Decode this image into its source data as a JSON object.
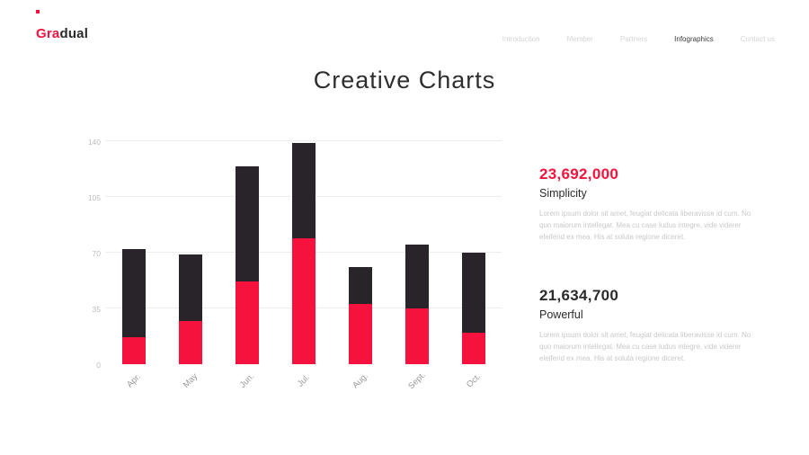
{
  "brand": {
    "name_accent": "Gra",
    "name_rest": "dual"
  },
  "nav": {
    "items": [
      {
        "label": "Introduction",
        "active": false
      },
      {
        "label": "Member",
        "active": false
      },
      {
        "label": "Partners",
        "active": false
      },
      {
        "label": "Infographics",
        "active": true
      },
      {
        "label": "Contact us",
        "active": false
      }
    ]
  },
  "page": {
    "title": "Creative Charts"
  },
  "chart_data": {
    "type": "bar",
    "stacked": true,
    "title": "",
    "xlabel": "",
    "ylabel": "",
    "categories": [
      "Apr.",
      "May",
      "Jun.",
      "Jul.",
      "Aug.",
      "Sept.",
      "Oct."
    ],
    "series": [
      {
        "name": "bottom-segment",
        "color": "#f5123d",
        "values": [
          17,
          27,
          52,
          79,
          38,
          35,
          20
        ]
      },
      {
        "name": "top-segment",
        "color": "#29242a",
        "values": [
          55,
          42,
          72,
          60,
          23,
          40,
          50
        ]
      }
    ],
    "totals": [
      72,
      69,
      124,
      139,
      61,
      75,
      70
    ],
    "ylim": [
      0,
      140
    ],
    "yticks": [
      0,
      35,
      70,
      105,
      140
    ],
    "grid": true,
    "legend": "none"
  },
  "stats": [
    {
      "value": "23,692,000",
      "label": "Simplicity",
      "body": "Lorem ipsum dolor sit amet, feugiat delicata liberavisse id cum. No quo maiorum intellegat. Mea cu case ludus integre, vide viderer eleifend ex mea. His at soluta regione diceret."
    },
    {
      "value": "21,634,700",
      "label": "Powerful",
      "body": "Lorem ipsum dolor sit amet, feugiat delicata liberavisse id cum. No quo maiorum intellegat. Mea cu case ludus integre, vide viderer eleifend ex mea. His at soluta regione diceret."
    }
  ],
  "colors": {
    "accent_red": "#f5123d",
    "bar_dark": "#29242a",
    "grid": "#ededed"
  }
}
